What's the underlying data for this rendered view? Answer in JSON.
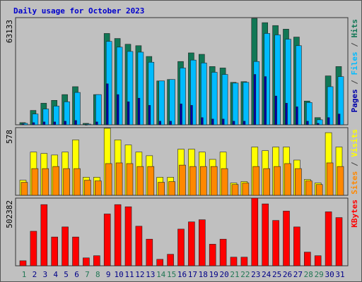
{
  "chart_data": {
    "type": "bar",
    "title": "Daily usage for October 2023",
    "categories": [
      "1",
      "2",
      "3",
      "4",
      "5",
      "6",
      "7",
      "8",
      "9",
      "10",
      "11",
      "12",
      "13",
      "14",
      "15",
      "16",
      "17",
      "18",
      "19",
      "20",
      "21",
      "22",
      "23",
      "24",
      "25",
      "26",
      "27",
      "28",
      "29",
      "30",
      "31"
    ],
    "weekend": [
      true,
      false,
      false,
      false,
      false,
      false,
      true,
      true,
      false,
      false,
      false,
      false,
      false,
      true,
      true,
      false,
      false,
      false,
      false,
      false,
      true,
      true,
      false,
      false,
      false,
      false,
      false,
      true,
      true,
      false,
      false
    ],
    "label_color": "#000088",
    "weekend_color": "#227755",
    "separator": " / ",
    "panels": [
      {
        "type": "bar",
        "ylim": [
          0,
          63133
        ],
        "yticks": [
          63133
        ],
        "series": [
          {
            "name": "Pages",
            "color": "#0000aa",
            "values": [
              424,
              1272,
              1696,
              1696,
              2120,
              2544,
              0,
              1696,
              24168,
              17808,
              13568,
              15688,
              11448,
              2120,
              2120,
              12296,
              11448,
              4240,
              3392,
              3392,
              2120,
              2120,
              29680,
              28408,
              16960,
              12720,
              10600,
              2120,
              848,
              4240,
              6360
            ]
          },
          {
            "name": "Files",
            "color": "#00bbff",
            "values": [
              847,
              6355,
              9322,
              11016,
              13559,
              19067,
              424,
              17796,
              49150,
              45761,
              43218,
              42795,
              36863,
              25846,
              26694,
              33473,
              38134,
              36439,
              30931,
              29660,
              24575,
              24999,
              37287,
              53811,
              52964,
              50422,
              46608,
              13135,
              2966,
              22456,
              28389
            ]
          },
          {
            "name": "Hits",
            "color": "#117755",
            "values": [
              1271,
              8474,
              12711,
              14406,
              17796,
              22456,
              847,
              17796,
              53811,
              50846,
              47455,
              46608,
              40253,
              25846,
              26694,
              37287,
              42371,
              41523,
              34320,
              33473,
              24999,
              25422,
              62709,
              60166,
              58471,
              56353,
              51693,
              13982,
              4237,
              28812,
              34320
            ]
          }
        ]
      },
      {
        "type": "bar",
        "ylim": [
          0,
          578
        ],
        "yticks": [
          578
        ],
        "series": [
          {
            "name": "Sites",
            "color": "#ff8800",
            "values": [
              111,
              228,
              228,
              246,
              228,
              228,
              129,
              123,
              271,
              277,
              271,
              246,
              246,
              111,
              117,
              258,
              246,
              246,
              246,
              228,
              92,
              105,
              246,
              228,
              246,
              271,
              228,
              123,
              92,
              277,
              246
            ]
          },
          {
            "name": "Visits",
            "color": "#ffff00",
            "values": [
              129,
              369,
              357,
              344,
              369,
              473,
              154,
              154,
              572,
              473,
              430,
              369,
              338,
              154,
              154,
              394,
              394,
              369,
              307,
              369,
              105,
              117,
              412,
              381,
              412,
              412,
              301,
              135,
              105,
              535,
              412
            ]
          }
        ]
      },
      {
        "type": "bar",
        "ylim": [
          0,
          502382
        ],
        "yticks": [
          502382
        ],
        "series": [
          {
            "name": "KBytes",
            "color": "#ff0000",
            "values": [
              37408,
              256512,
              454240,
              213760,
              288576,
              213760,
              58784,
              74816,
              384768,
              454240,
              438208,
              293920,
              197728,
              48096,
              85504,
              272544,
              325984,
              342016,
              160320,
              197728,
              64128,
              64128,
              502382,
              459584,
              336672,
              406144,
              288576,
              101536,
              74816,
              400800,
              358048
            ]
          }
        ]
      }
    ]
  }
}
